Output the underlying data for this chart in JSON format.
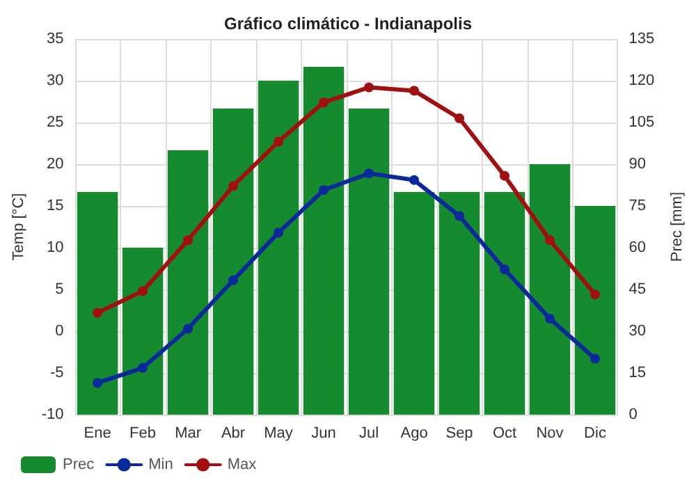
{
  "chart_data": {
    "type": "bar",
    "title": "Gráfico climático - Indianapolis",
    "ylabel": "Temp [°C]",
    "y2label": "Prec [mm]",
    "categories": [
      "Ene",
      "Feb",
      "Mar",
      "Abr",
      "May",
      "Jun",
      "Jul",
      "Ago",
      "Sep",
      "Oct",
      "Nov",
      "Dic"
    ],
    "series": [
      {
        "name": "Prec",
        "axis": "y2",
        "color": "#168a2e",
        "values": [
          80,
          60,
          95,
          110,
          120,
          125,
          110,
          80,
          80,
          80,
          90,
          75
        ]
      },
      {
        "name": "Min",
        "type": "line",
        "color": "#0a2a9a",
        "values": [
          -6.2,
          -4.4,
          0.3,
          6.1,
          11.8,
          16.9,
          18.9,
          18.1,
          13.8,
          7.4,
          1.5,
          -3.3
        ]
      },
      {
        "name": "Max",
        "type": "line",
        "color": "#a01010",
        "values": [
          2.2,
          4.8,
          10.9,
          17.4,
          22.7,
          27.4,
          29.2,
          28.8,
          25.5,
          18.6,
          10.9,
          4.4
        ]
      }
    ],
    "ylim": [
      -10,
      35
    ],
    "yticks": [
      -10,
      -5,
      0,
      5,
      10,
      15,
      20,
      25,
      30,
      35
    ],
    "y2lim": [
      0,
      135
    ],
    "y2ticks": [
      0,
      15,
      30,
      45,
      60,
      75,
      90,
      105,
      120,
      135
    ],
    "grid": true,
    "legend": "bottom",
    "marker": "circle",
    "line_style": "solid"
  }
}
